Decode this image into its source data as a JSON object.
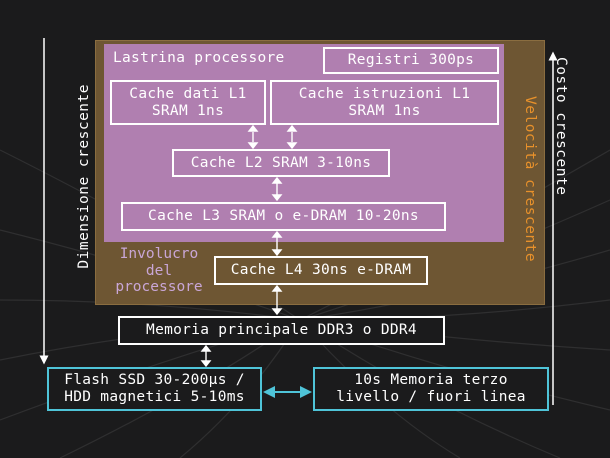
{
  "die": {
    "label": "Lastrina processore"
  },
  "registers": {
    "label": "Registri 300ps"
  },
  "l1_data": {
    "line1": "Cache dati L1",
    "line2": "SRAM 1ns"
  },
  "l1_instr": {
    "line1": "Cache istruzioni L1",
    "line2": "SRAM 1ns"
  },
  "l2": {
    "label": "Cache L2 SRAM 3-10ns"
  },
  "l3": {
    "label": "Cache L3 SRAM o e-DRAM 10-20ns"
  },
  "package": {
    "line1": "Involucro",
    "line2": "del",
    "line3": "processore"
  },
  "l4": {
    "label": "Cache L4 30ns e-DRAM"
  },
  "main_memory": {
    "label": "Memoria principale DDR3 o DDR4"
  },
  "flash": {
    "line1": "Flash SSD 30-200µs /",
    "line2": "HDD magnetici 5-10ms"
  },
  "tertiary": {
    "line1": "10s Memoria terzo",
    "line2": "livello / fuori linea"
  },
  "axis_size": {
    "label": "Dimensione crescente"
  },
  "axis_speed": {
    "label": "Velocità crescente"
  },
  "axis_cost": {
    "label": "Costo crescente"
  },
  "colors": {
    "background": "#1b1b1c",
    "package": "#6e5633",
    "die": "#b07fb0",
    "cyan": "#4fc4d8",
    "speed_label": "#e8912b",
    "package_label": "#c9a6d6"
  }
}
